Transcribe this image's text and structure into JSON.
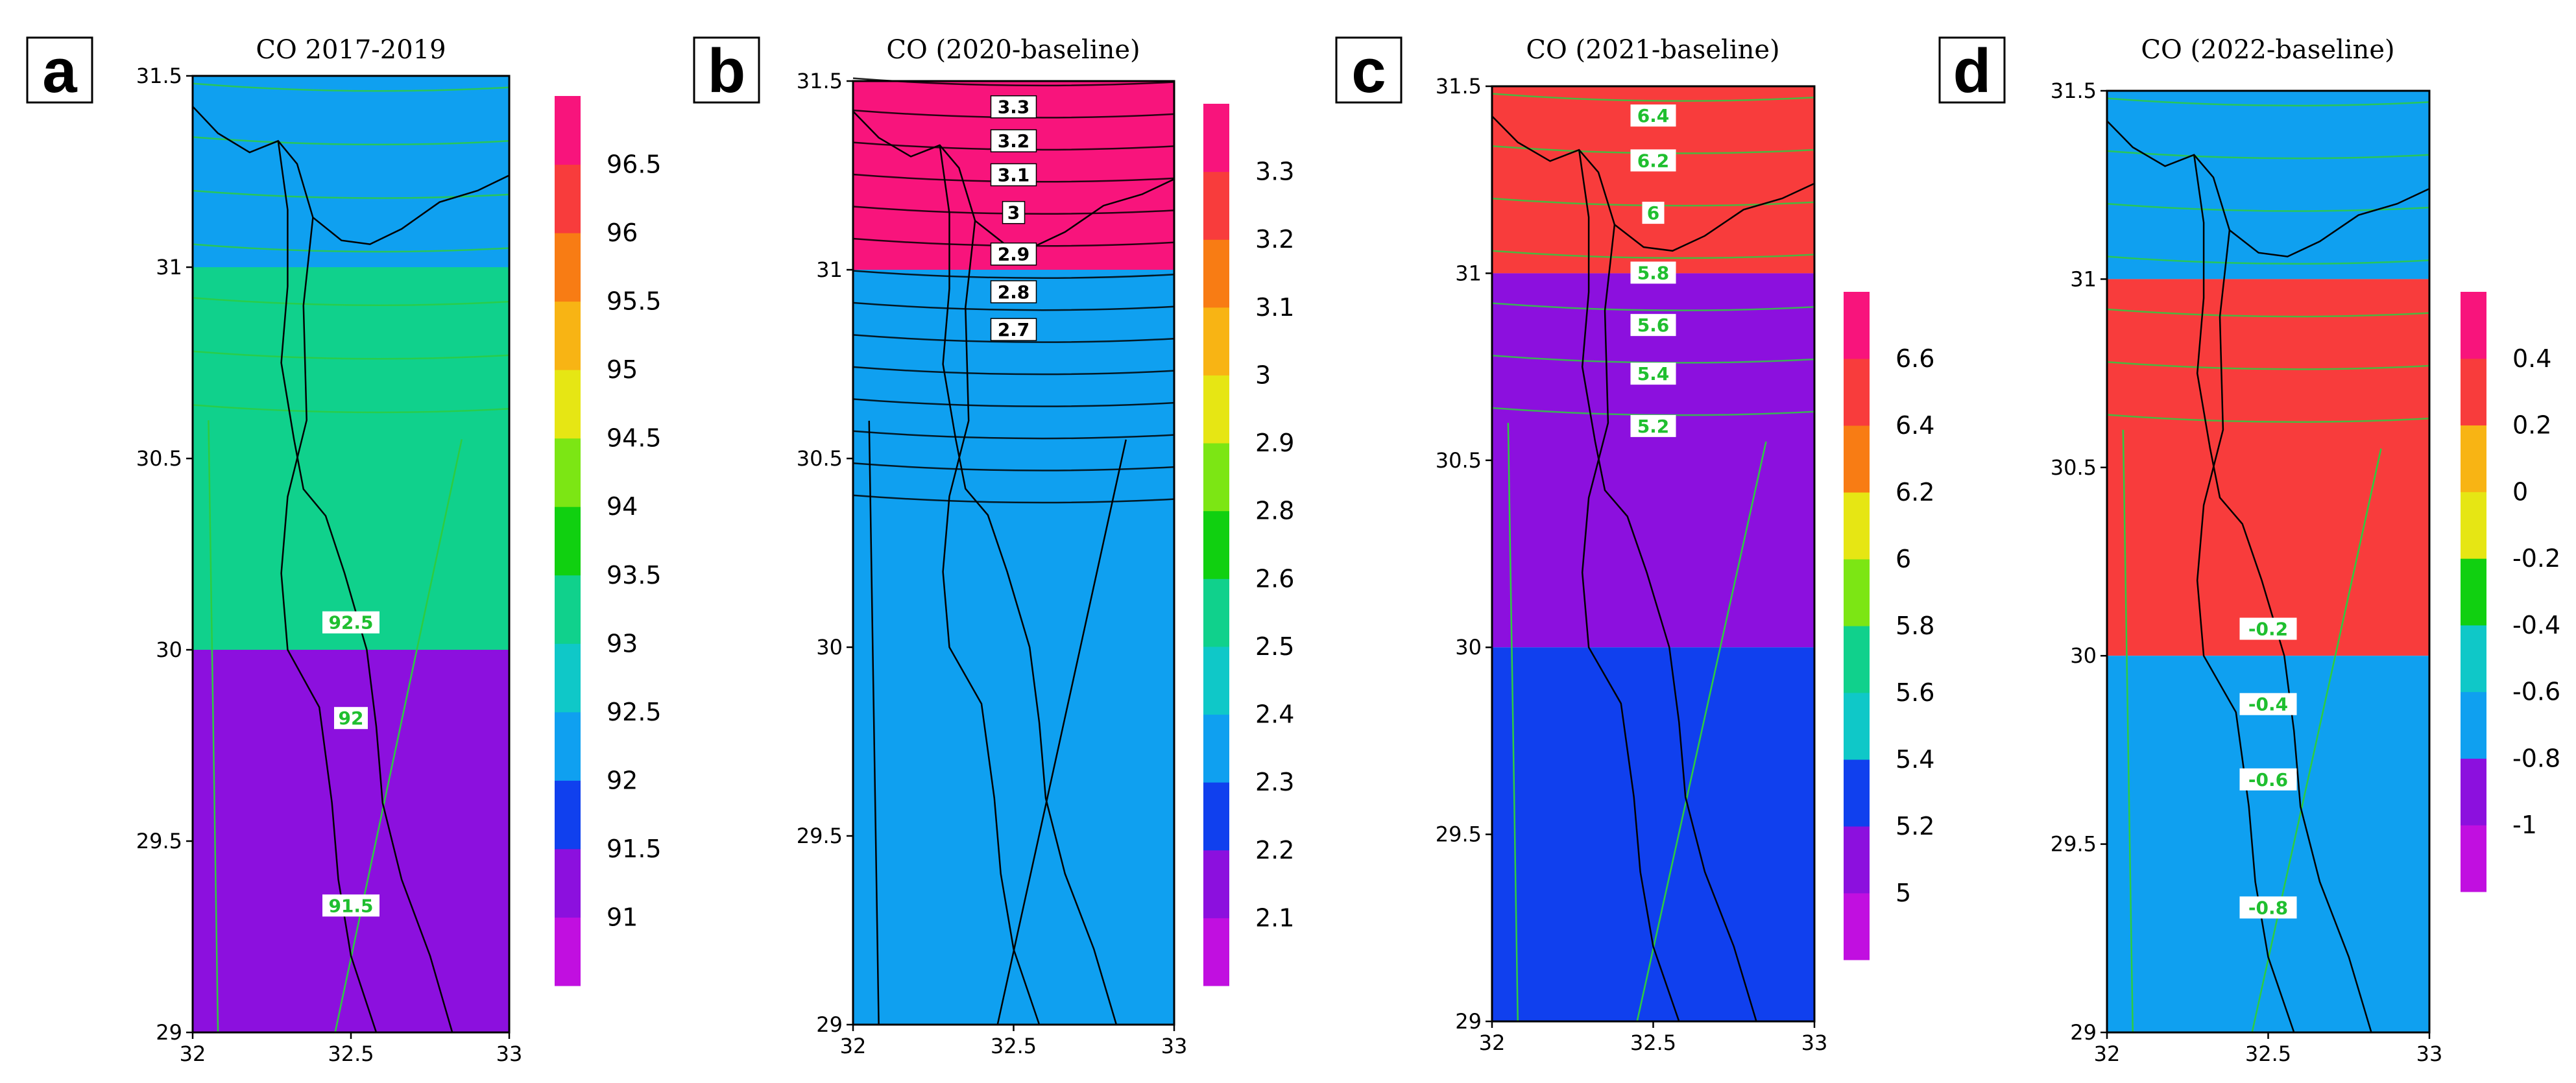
{
  "chart_data": [
    {
      "panel_letter": "a",
      "type": "heatmap",
      "title": "CO 2017-2019",
      "xlim": [
        32,
        33
      ],
      "ylim": [
        29,
        31.5
      ],
      "x_ticks": [
        "32",
        "32.5",
        "33"
      ],
      "y_ticks": [
        "29",
        "29.5",
        "30",
        "30.5",
        "31",
        "31.5"
      ],
      "bands": [
        {
          "y0": 31,
          "y1": 31.5,
          "color": "#0fa0f0"
        },
        {
          "y0": 30,
          "y1": 31,
          "color": "#10d18c"
        },
        {
          "y0": 29,
          "y1": 30,
          "color": "#8c10de"
        }
      ],
      "colorbar": {
        "colors": [
          "#c10fe0",
          "#8c10de",
          "#1040ee",
          "#0fa0f0",
          "#0fc8c8",
          "#10d18c",
          "#10d010",
          "#7ce614",
          "#e6e614",
          "#f8b414",
          "#f87c14",
          "#f83c3c",
          "#f8147c"
        ],
        "labels": [
          "91",
          "91.5",
          "92",
          "92.5",
          "93",
          "93.5",
          "94",
          "94.5",
          "95",
          "95.5",
          "96",
          "96.5"
        ]
      },
      "contour_labels": [
        {
          "text": "92.5",
          "x": 32.5,
          "y": 30.07,
          "style": "green"
        },
        {
          "text": "92",
          "x": 32.5,
          "y": 29.82,
          "style": "green"
        },
        {
          "text": "91.5",
          "x": 32.5,
          "y": 29.33,
          "style": "green"
        }
      ],
      "contour_color": "#2ecc40"
    },
    {
      "panel_letter": "b",
      "type": "heatmap",
      "title": "CO (2020-baseline)",
      "xlim": [
        32,
        33
      ],
      "ylim": [
        29,
        31.5
      ],
      "x_ticks": [
        "32",
        "32.5",
        "33"
      ],
      "y_ticks": [
        "29",
        "29.5",
        "30",
        "30.5",
        "31",
        "31.5"
      ],
      "bands": [
        {
          "y0": 31,
          "y1": 31.5,
          "color": "#f8147c"
        },
        {
          "y0": 29,
          "y1": 31,
          "color": "#0fa0f0"
        }
      ],
      "colorbar": {
        "colors": [
          "#c10fe0",
          "#8c10de",
          "#1040ee",
          "#0fa0f0",
          "#0fc8c8",
          "#10d18c",
          "#10d010",
          "#7ce614",
          "#e6e614",
          "#f8b414",
          "#f87c14",
          "#f83c3c",
          "#f8147c"
        ],
        "labels": [
          "2.1",
          "2.2",
          "2.3",
          "2.4",
          "2.5",
          "2.6",
          "2.8",
          "2.9",
          "3",
          "3.1",
          "3.2",
          "3.3"
        ]
      },
      "contour_labels": [
        {
          "text": "3.3",
          "x": 32.5,
          "y": 31.43,
          "style": "white"
        },
        {
          "text": "3.2",
          "x": 32.5,
          "y": 31.34,
          "style": "white"
        },
        {
          "text": "3.1",
          "x": 32.5,
          "y": 31.25,
          "style": "white"
        },
        {
          "text": "3",
          "x": 32.5,
          "y": 31.15,
          "style": "white"
        },
        {
          "text": "2.9",
          "x": 32.5,
          "y": 31.04,
          "style": "white"
        },
        {
          "text": "2.8",
          "x": 32.5,
          "y": 30.94,
          "style": "white"
        },
        {
          "text": "2.7",
          "x": 32.5,
          "y": 30.84,
          "style": "white"
        }
      ],
      "contour_color": "#000000"
    },
    {
      "panel_letter": "c",
      "type": "heatmap",
      "title": "CO (2021-baseline)",
      "xlim": [
        32,
        33
      ],
      "ylim": [
        29,
        31.5
      ],
      "x_ticks": [
        "32",
        "32.5",
        "33"
      ],
      "y_ticks": [
        "29",
        "29.5",
        "30",
        "30.5",
        "31",
        "31.5"
      ],
      "bands": [
        {
          "y0": 31,
          "y1": 31.5,
          "color": "#f83c3c"
        },
        {
          "y0": 30,
          "y1": 31,
          "color": "#8c10de"
        },
        {
          "y0": 29,
          "y1": 30,
          "color": "#1040ee"
        }
      ],
      "colorbar": {
        "colors": [
          "#c10fe0",
          "#8c10de",
          "#1040ee",
          "#0fc8c8",
          "#10d18c",
          "#7ce614",
          "#e6e614",
          "#f87c14",
          "#f83c3c",
          "#f8147c"
        ],
        "labels": [
          "5",
          "5.2",
          "5.4",
          "5.6",
          "5.8",
          "6",
          "6.2",
          "6.4",
          "6.6"
        ]
      },
      "contour_labels": [
        {
          "text": "6.4",
          "x": 32.5,
          "y": 31.42,
          "style": "green"
        },
        {
          "text": "6.2",
          "x": 32.5,
          "y": 31.3,
          "style": "green"
        },
        {
          "text": "6",
          "x": 32.5,
          "y": 31.16,
          "style": "green"
        },
        {
          "text": "5.8",
          "x": 32.5,
          "y": 31.0,
          "style": "green"
        },
        {
          "text": "5.6",
          "x": 32.5,
          "y": 30.86,
          "style": "green"
        },
        {
          "text": "5.4",
          "x": 32.5,
          "y": 30.73,
          "style": "green"
        },
        {
          "text": "5.2",
          "x": 32.5,
          "y": 30.59,
          "style": "green"
        }
      ],
      "contour_color": "#2ecc40"
    },
    {
      "panel_letter": "d",
      "type": "heatmap",
      "title": "CO (2022-baseline)",
      "xlim": [
        32,
        33
      ],
      "ylim": [
        29,
        31.5
      ],
      "x_ticks": [
        "32",
        "32.5",
        "33"
      ],
      "y_ticks": [
        "29",
        "29.5",
        "30",
        "30.5",
        "31",
        "31.5"
      ],
      "bands": [
        {
          "y0": 31,
          "y1": 31.5,
          "color": "#0fa0f0"
        },
        {
          "y0": 30,
          "y1": 31,
          "color": "#f83c3c"
        },
        {
          "y0": 29,
          "y1": 30,
          "color": "#0fa0f0"
        }
      ],
      "colorbar": {
        "colors": [
          "#c10fe0",
          "#8c10de",
          "#0fa0f0",
          "#0fc8c8",
          "#10d010",
          "#e6e614",
          "#f8b414",
          "#f83c3c",
          "#f8147c"
        ],
        "labels": [
          "-1",
          "-0.8",
          "-0.6",
          "-0.4",
          "-0.2",
          "0",
          "0.2",
          "0.4"
        ]
      },
      "contour_labels": [
        {
          "text": "-0.2",
          "x": 32.5,
          "y": 30.07,
          "style": "green"
        },
        {
          "text": "-0.4",
          "x": 32.5,
          "y": 29.87,
          "style": "green"
        },
        {
          "text": "-0.6",
          "x": 32.5,
          "y": 29.67,
          "style": "green"
        },
        {
          "text": "-0.8",
          "x": 32.5,
          "y": 29.33,
          "style": "green"
        }
      ],
      "contour_color": "#2ecc40"
    }
  ]
}
